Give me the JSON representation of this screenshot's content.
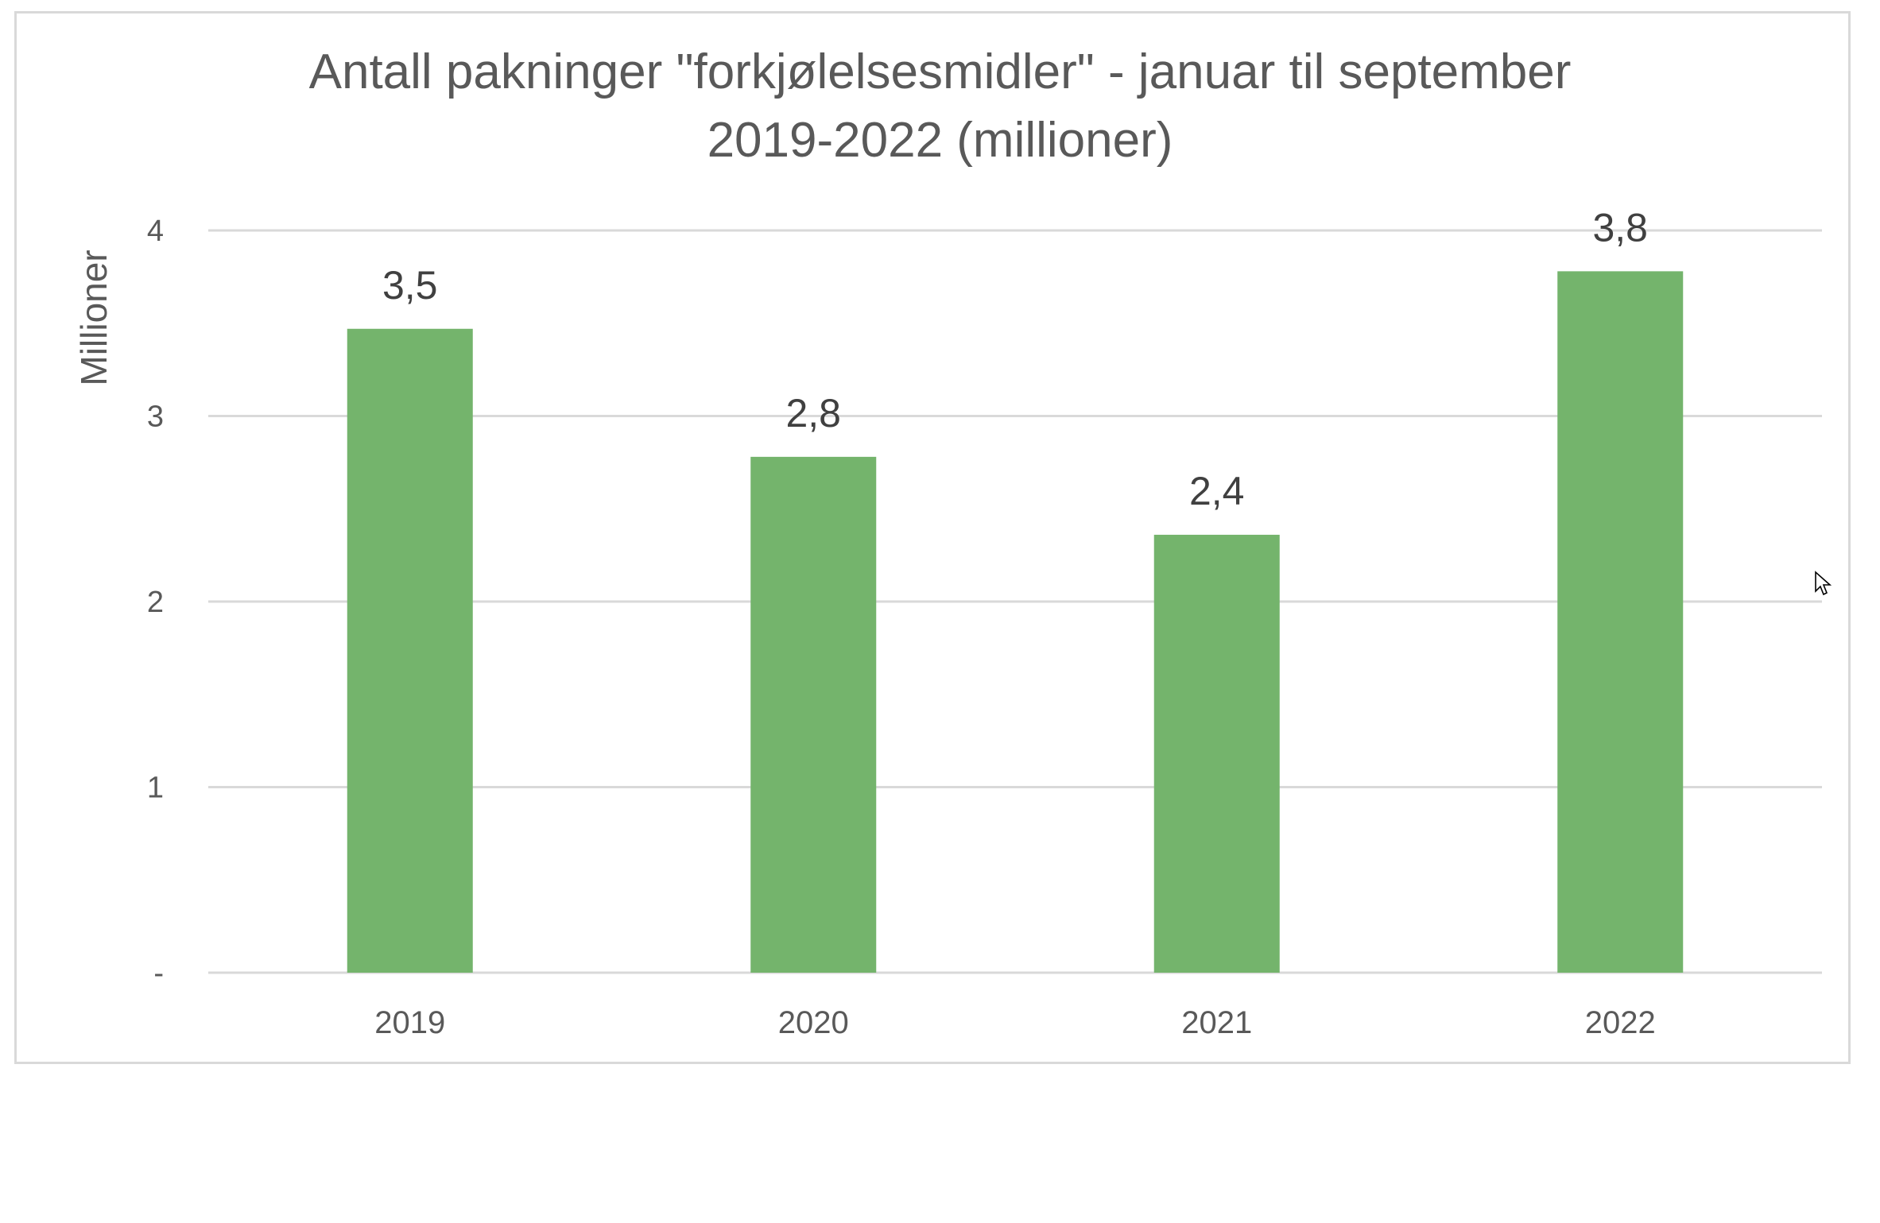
{
  "chart_data": {
    "type": "bar",
    "title": "Antall pakninger \"forkjølelsesmidler\" - januar til september\n2019-2022 (millioner)",
    "xlabel": "",
    "ylabel": "Millioner",
    "categories": [
      "2019",
      "2020",
      "2021",
      "2022"
    ],
    "values": [
      3.47,
      2.78,
      2.36,
      3.78
    ],
    "data_labels": [
      "3,5",
      "2,8",
      "2,4",
      "3,8"
    ],
    "ylim": [
      0,
      4
    ],
    "yticks": [
      {
        "value": 0,
        "label": "-"
      },
      {
        "value": 1,
        "label": "1"
      },
      {
        "value": 2,
        "label": "2"
      },
      {
        "value": 3,
        "label": "3"
      },
      {
        "value": 4,
        "label": "4"
      }
    ],
    "grid": true,
    "legend": "none",
    "colors": {
      "bar": "#74b46c",
      "grid": "#d9d9d9",
      "text": "#595959",
      "data_label": "#404040"
    }
  }
}
